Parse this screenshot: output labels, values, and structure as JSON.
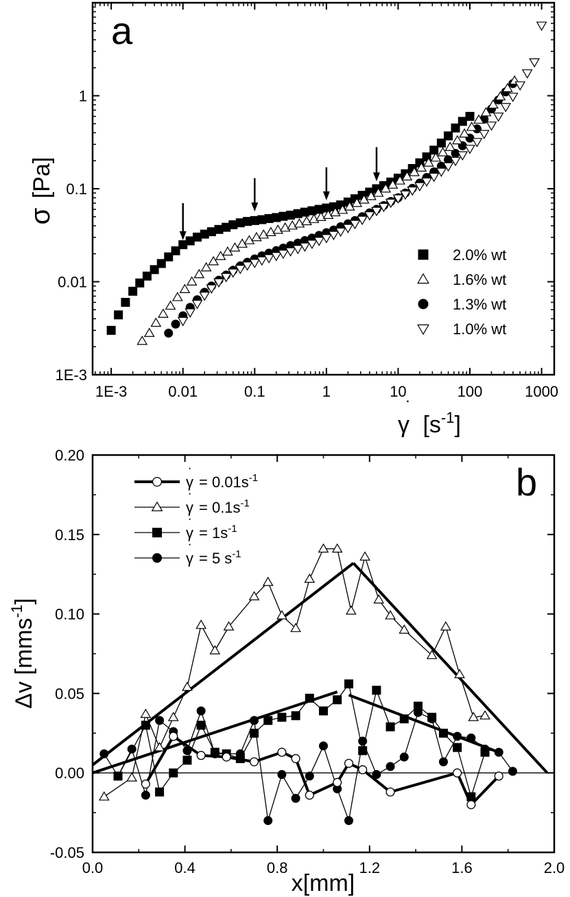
{
  "chart_data": [
    {
      "type": "scatter",
      "panel_label": "a",
      "ylabel_symbol": "σ",
      "ylabel_unit": "[Pa]",
      "xlabel_symbol": "γ",
      "xlabel_unit_prefix": "[s",
      "xlabel_unit_exp": "-1",
      "xlabel_unit_suffix": "]",
      "xscale": "log",
      "yscale": "log",
      "xlim": [
        0.00055,
        1500
      ],
      "ylim": [
        0.001,
        10
      ],
      "x_ticks": [
        0.001,
        0.01,
        0.1,
        1,
        10,
        100,
        1000
      ],
      "x_tick_labels": [
        "1E-3",
        "0.01",
        "0.1",
        "1",
        "10",
        "100",
        "1000"
      ],
      "y_ticks": [
        0.001,
        0.01,
        0.1,
        1
      ],
      "y_tick_labels": [
        "1E-3",
        "0.01",
        "0.1",
        "1"
      ],
      "legend_position": "bottom-right",
      "annotations": [
        {
          "type": "arrow-down",
          "x": 0.01,
          "y_from": 0.07,
          "y_to": 0.028
        },
        {
          "type": "arrow-down",
          "x": 0.1,
          "y_from": 0.13,
          "y_to": 0.057
        },
        {
          "type": "arrow-down",
          "x": 1,
          "y_from": 0.17,
          "y_to": 0.075
        },
        {
          "type": "arrow-down",
          "x": 5,
          "y_from": 0.28,
          "y_to": 0.12
        }
      ],
      "series": [
        {
          "name": "2.0% wt",
          "marker": "square-filled",
          "x": [
            0.001,
            0.00126,
            0.00158,
            0.002,
            0.0025,
            0.00316,
            0.004,
            0.005,
            0.0063,
            0.0079,
            0.01,
            0.0126,
            0.0158,
            0.02,
            0.025,
            0.0316,
            0.04,
            0.05,
            0.063,
            0.079,
            0.1,
            0.126,
            0.158,
            0.2,
            0.25,
            0.316,
            0.4,
            0.5,
            0.63,
            0.79,
            1,
            1.26,
            1.58,
            2,
            2.5,
            3.16,
            4,
            5,
            6.3,
            7.9,
            10,
            12.6,
            15.8,
            20,
            25,
            31.6,
            40,
            50,
            63,
            79,
            100
          ],
          "y": [
            0.003,
            0.0044,
            0.006,
            0.0079,
            0.0097,
            0.0115,
            0.0135,
            0.0157,
            0.0185,
            0.0215,
            0.025,
            0.0275,
            0.0302,
            0.0325,
            0.0345,
            0.0365,
            0.0385,
            0.041,
            0.043,
            0.0445,
            0.0455,
            0.0465,
            0.0478,
            0.049,
            0.0505,
            0.052,
            0.054,
            0.056,
            0.058,
            0.06,
            0.062,
            0.064,
            0.067,
            0.072,
            0.078,
            0.085,
            0.092,
            0.1,
            0.108,
            0.118,
            0.13,
            0.145,
            0.165,
            0.19,
            0.22,
            0.26,
            0.31,
            0.37,
            0.45,
            0.53,
            0.6
          ]
        },
        {
          "name": "1.6% wt",
          "marker": "triangle-up-open",
          "x": [
            0.0027,
            0.0034,
            0.0042,
            0.0053,
            0.0067,
            0.0084,
            0.0106,
            0.0133,
            0.0168,
            0.0211,
            0.0266,
            0.0335,
            0.042,
            0.053,
            0.067,
            0.084,
            0.106,
            0.133,
            0.168,
            0.211,
            0.266,
            0.335,
            0.42,
            0.53,
            0.67,
            0.84,
            1.06,
            1.33,
            1.68,
            2.11,
            2.66,
            3.35,
            4.2,
            5.3,
            6.7,
            8.4,
            10.6,
            13.3,
            16.8,
            21.1,
            26.6,
            33.5,
            42,
            53,
            67,
            84,
            106,
            133,
            168,
            211,
            266,
            335,
            420
          ],
          "y": [
            0.0023,
            0.0028,
            0.0036,
            0.0045,
            0.0055,
            0.0068,
            0.0083,
            0.01,
            0.012,
            0.0142,
            0.0165,
            0.0188,
            0.021,
            0.0232,
            0.0255,
            0.0278,
            0.03,
            0.032,
            0.034,
            0.036,
            0.038,
            0.04,
            0.042,
            0.0445,
            0.047,
            0.0495,
            0.052,
            0.0555,
            0.059,
            0.064,
            0.07,
            0.076,
            0.083,
            0.09,
            0.1,
            0.11,
            0.122,
            0.135,
            0.15,
            0.168,
            0.19,
            0.215,
            0.245,
            0.28,
            0.33,
            0.39,
            0.46,
            0.55,
            0.66,
            0.8,
            0.98,
            1.2,
            1.45
          ]
        },
        {
          "name": "1.3% wt",
          "marker": "circle-filled",
          "x": [
            0.0063,
            0.0079,
            0.01,
            0.0126,
            0.0158,
            0.02,
            0.025,
            0.0316,
            0.04,
            0.05,
            0.063,
            0.079,
            0.1,
            0.126,
            0.158,
            0.2,
            0.25,
            0.316,
            0.4,
            0.5,
            0.63,
            0.79,
            1,
            1.26,
            1.58,
            2,
            2.5,
            3.16,
            4,
            5,
            6.3,
            7.9,
            10,
            12.6,
            15.8,
            20,
            25,
            31.6,
            40,
            50,
            63,
            79,
            100,
            126,
            158,
            200,
            250,
            316,
            398
          ],
          "y": [
            0.0028,
            0.0035,
            0.0043,
            0.0053,
            0.0064,
            0.0077,
            0.009,
            0.0104,
            0.0118,
            0.0133,
            0.0148,
            0.0162,
            0.0176,
            0.019,
            0.0203,
            0.0216,
            0.023,
            0.0245,
            0.026,
            0.0277,
            0.0295,
            0.0315,
            0.0337,
            0.036,
            0.039,
            0.042,
            0.0455,
            0.05,
            0.055,
            0.06,
            0.066,
            0.073,
            0.08,
            0.09,
            0.101,
            0.115,
            0.132,
            0.152,
            0.175,
            0.205,
            0.24,
            0.29,
            0.35,
            0.44,
            0.56,
            0.72,
            0.9,
            1.1,
            1.35
          ]
        },
        {
          "name": "1.0% wt",
          "marker": "triangle-down-open",
          "x": [
            0.01,
            0.0126,
            0.0158,
            0.02,
            0.025,
            0.0316,
            0.04,
            0.05,
            0.063,
            0.079,
            0.1,
            0.126,
            0.158,
            0.2,
            0.25,
            0.316,
            0.4,
            0.5,
            0.63,
            0.79,
            1,
            1.26,
            1.58,
            2,
            2.5,
            3.16,
            4,
            5,
            6.3,
            7.9,
            10,
            12.6,
            15.8,
            20,
            25,
            31.6,
            40,
            50,
            63,
            79,
            100,
            126,
            158,
            200,
            250,
            316,
            398,
            501,
            631,
            794,
            1000
          ],
          "y": [
            0.0038,
            0.0047,
            0.0058,
            0.0071,
            0.0085,
            0.0099,
            0.0113,
            0.0126,
            0.0138,
            0.015,
            0.016,
            0.017,
            0.018,
            0.019,
            0.0201,
            0.0213,
            0.0226,
            0.024,
            0.0257,
            0.0276,
            0.0296,
            0.032,
            0.0347,
            0.038,
            0.042,
            0.0465,
            0.052,
            0.058,
            0.064,
            0.071,
            0.079,
            0.087,
            0.096,
            0.107,
            0.12,
            0.135,
            0.153,
            0.175,
            0.2,
            0.23,
            0.27,
            0.32,
            0.39,
            0.48,
            0.6,
            0.76,
            0.98,
            1.3,
            1.75,
            2.3,
            5.7
          ]
        }
      ]
    },
    {
      "type": "line",
      "panel_label": "b",
      "ylabel": "Δv [mms",
      "ylabel_exp": "-1",
      "ylabel_suffix": "]",
      "xlabel": "x[mm]",
      "xlim": [
        0.0,
        2.0
      ],
      "ylim": [
        -0.05,
        0.2
      ],
      "x_ticks": [
        0.0,
        0.4,
        0.8,
        1.2,
        1.6,
        2.0
      ],
      "x_tick_labels": [
        "0.0",
        "0.4",
        "0.8",
        "1.2",
        "1.6",
        "2.0"
      ],
      "y_ticks": [
        -0.05,
        0.0,
        0.05,
        0.1,
        0.15,
        0.2
      ],
      "y_tick_labels": [
        "-0.05",
        "0.00",
        "0.05",
        "0.10",
        "0.15",
        "0.20"
      ],
      "legend_position": "top-left",
      "legend_symbol": "γ",
      "series": [
        {
          "name": "= 0.01s",
          "name_exp": "-1",
          "marker": "circle-open",
          "line_width": 4,
          "x": [
            0.23,
            0.35,
            0.47,
            0.58,
            0.7,
            0.82,
            0.88,
            0.94,
            1.06,
            1.11,
            1.17,
            1.29,
            1.58,
            1.64,
            1.76
          ],
          "y": [
            -0.007,
            0.023,
            0.011,
            0.01,
            0.007,
            0.013,
            0.009,
            -0.014,
            -0.006,
            0.006,
            0.002,
            -0.012,
            0.0,
            -0.02,
            -0.002
          ]
        },
        {
          "name": "= 0.1s",
          "name_exp": "-1",
          "marker": "triangle-up-open",
          "line_width": 1.3,
          "x": [
            0.05,
            0.17,
            0.23,
            0.29,
            0.35,
            0.41,
            0.47,
            0.53,
            0.59,
            0.7,
            0.76,
            0.82,
            0.88,
            0.94,
            1.0,
            1.06,
            1.12,
            1.18,
            1.24,
            1.29,
            1.35,
            1.47,
            1.53,
            1.59,
            1.65,
            1.7
          ],
          "y": [
            -0.015,
            -0.003,
            0.037,
            0.016,
            0.035,
            0.054,
            0.093,
            0.077,
            0.092,
            0.111,
            0.12,
            0.099,
            0.091,
            0.122,
            0.141,
            0.141,
            0.102,
            0.136,
            0.109,
            0.099,
            0.09,
            0.074,
            0.092,
            0.062,
            0.035,
            0.036
          ]
        },
        {
          "name": "= 1s",
          "name_exp": "-1",
          "marker": "square-filled",
          "line_width": 1.3,
          "x": [
            0.11,
            0.23,
            0.29,
            0.35,
            0.41,
            0.47,
            0.53,
            0.58,
            0.64,
            0.7,
            0.76,
            0.82,
            0.88,
            0.94,
            1.0,
            1.06,
            1.11,
            1.17,
            1.23,
            1.29,
            1.35,
            1.41,
            1.47,
            1.52,
            1.58,
            1.64,
            1.7
          ],
          "y": [
            -0.002,
            0.03,
            -0.012,
            0.0,
            0.008,
            0.03,
            0.013,
            0.012,
            0.009,
            0.025,
            0.033,
            0.035,
            0.036,
            0.047,
            0.039,
            0.046,
            0.056,
            0.014,
            0.052,
            0.029,
            0.034,
            0.042,
            0.035,
            0.025,
            0.016,
            -0.015,
            0.013
          ]
        },
        {
          "name": "= 5 s",
          "name_exp": "-1",
          "marker": "circle-filled",
          "line_width": 1.3,
          "x": [
            0.05,
            0.11,
            0.17,
            0.23,
            0.29,
            0.35,
            0.41,
            0.47,
            0.53,
            0.64,
            0.7,
            0.76,
            0.82,
            0.88,
            0.94,
            1.0,
            1.06,
            1.11,
            1.17,
            1.23,
            1.29,
            1.35,
            1.41,
            1.47,
            1.52,
            1.58,
            1.64,
            1.7,
            1.76,
            1.82
          ],
          "y": [
            0.012,
            -0.002,
            0.015,
            -0.014,
            0.033,
            0.026,
            0.014,
            0.039,
            0.012,
            0.012,
            0.033,
            -0.03,
            -0.001,
            -0.016,
            -0.002,
            0.017,
            -0.01,
            -0.03,
            0.02,
            -0.001,
            0.004,
            0.01,
            0.038,
            0.034,
            0.007,
            0.023,
            0.022,
            0.015,
            0.013,
            0.001
          ]
        }
      ],
      "fit_lines": [
        {
          "x": [
            0.0,
            1.13
          ],
          "y": [
            0.005,
            0.132
          ],
          "line_width": 4
        },
        {
          "x": [
            1.13,
            1.97
          ],
          "y": [
            0.132,
            0.0
          ],
          "line_width": 4
        },
        {
          "x": [
            0.0,
            1.06
          ],
          "y": [
            0.0,
            0.051
          ],
          "line_width": 4
        },
        {
          "x": [
            1.11,
            1.76
          ],
          "y": [
            0.049,
            0.013
          ],
          "line_width": 4
        },
        {
          "x": [
            0.0,
            2.0
          ],
          "y": [
            0.0,
            0.0
          ],
          "line_width": 1.3
        }
      ]
    }
  ]
}
